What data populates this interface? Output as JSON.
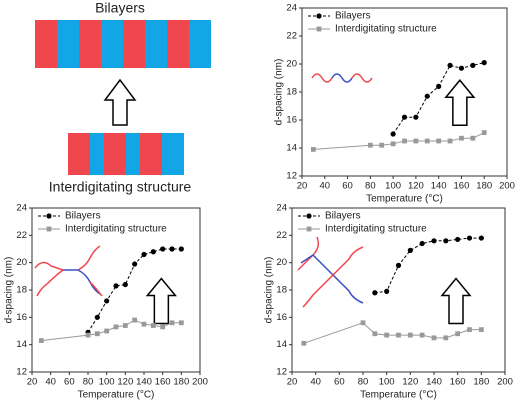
{
  "diagram": {
    "top_label": "Bilayers",
    "bottom_label": "Interdigitating structure"
  },
  "chart_data": [
    {
      "type": "line",
      "xlabel": "Temperature (°C)",
      "ylabel": "d-spacing (nm)",
      "xlim": [
        20,
        200
      ],
      "xticks": [
        20,
        40,
        60,
        80,
        100,
        120,
        140,
        160,
        180,
        200
      ],
      "ylim": [
        12,
        24
      ],
      "yticks": [
        12,
        14,
        16,
        18,
        20,
        22,
        24
      ],
      "legend": "top-left",
      "series": [
        {
          "name": "Bilayers",
          "color": "#000000",
          "marker": "circle",
          "dashed": true,
          "x": [
            100,
            110,
            120,
            130,
            140,
            150,
            160,
            170,
            180
          ],
          "values": [
            15.0,
            16.2,
            16.2,
            17.7,
            18.4,
            19.9,
            19.7,
            19.9,
            20.1
          ]
        },
        {
          "name": "Interdigitating structure",
          "color": "#999999",
          "marker": "square",
          "dashed": false,
          "x": [
            30,
            80,
            90,
            100,
            110,
            120,
            130,
            140,
            150,
            160,
            170,
            180
          ],
          "values": [
            13.9,
            14.2,
            14.2,
            14.3,
            14.5,
            14.5,
            14.5,
            14.5,
            14.5,
            14.7,
            14.7,
            15.1
          ]
        }
      ]
    },
    {
      "type": "line",
      "xlabel": "Temperature (°C)",
      "ylabel": "d-spacing (nm)",
      "xlim": [
        20,
        200
      ],
      "xticks": [
        20,
        40,
        60,
        80,
        100,
        120,
        140,
        160,
        180,
        200
      ],
      "ylim": [
        12,
        24
      ],
      "yticks": [
        12,
        14,
        16,
        18,
        20,
        22,
        24
      ],
      "legend": "top-left",
      "series": [
        {
          "name": "Bilayers",
          "color": "#000000",
          "marker": "circle",
          "dashed": true,
          "x": [
            80,
            90,
            100,
            110,
            120,
            130,
            140,
            150,
            160,
            170,
            180
          ],
          "values": [
            14.9,
            16.0,
            17.2,
            18.3,
            18.4,
            19.9,
            20.6,
            20.8,
            21.0,
            21.0,
            21.0
          ]
        },
        {
          "name": "Interdigitating structure",
          "color": "#999999",
          "marker": "square",
          "dashed": false,
          "x": [
            30,
            80,
            90,
            100,
            110,
            120,
            130,
            140,
            150,
            160,
            170,
            180
          ],
          "values": [
            14.3,
            14.7,
            14.8,
            15.0,
            15.3,
            15.4,
            15.8,
            15.5,
            15.4,
            15.3,
            15.6,
            15.6
          ]
        }
      ]
    },
    {
      "type": "line",
      "xlabel": "Temperature (°C)",
      "ylabel": "d-spacing (nm)",
      "xlim": [
        20,
        200
      ],
      "xticks": [
        20,
        40,
        60,
        80,
        100,
        120,
        140,
        160,
        180,
        200
      ],
      "ylim": [
        12,
        24
      ],
      "yticks": [
        12,
        14,
        16,
        18,
        20,
        22,
        24
      ],
      "legend": "top-left",
      "series": [
        {
          "name": "Bilayers",
          "color": "#000000",
          "marker": "circle",
          "dashed": true,
          "x": [
            90,
            100,
            110,
            120,
            130,
            140,
            150,
            160,
            170,
            180
          ],
          "values": [
            17.8,
            17.9,
            19.8,
            20.9,
            21.4,
            21.6,
            21.6,
            21.7,
            21.8,
            21.8
          ]
        },
        {
          "name": "Interdigitating structure",
          "color": "#999999",
          "marker": "square",
          "dashed": false,
          "x": [
            30,
            80,
            90,
            100,
            110,
            120,
            130,
            140,
            150,
            160,
            170,
            180
          ],
          "values": [
            14.1,
            15.6,
            14.8,
            14.7,
            14.7,
            14.7,
            14.7,
            14.5,
            14.5,
            14.8,
            15.1,
            15.1
          ]
        }
      ]
    }
  ]
}
